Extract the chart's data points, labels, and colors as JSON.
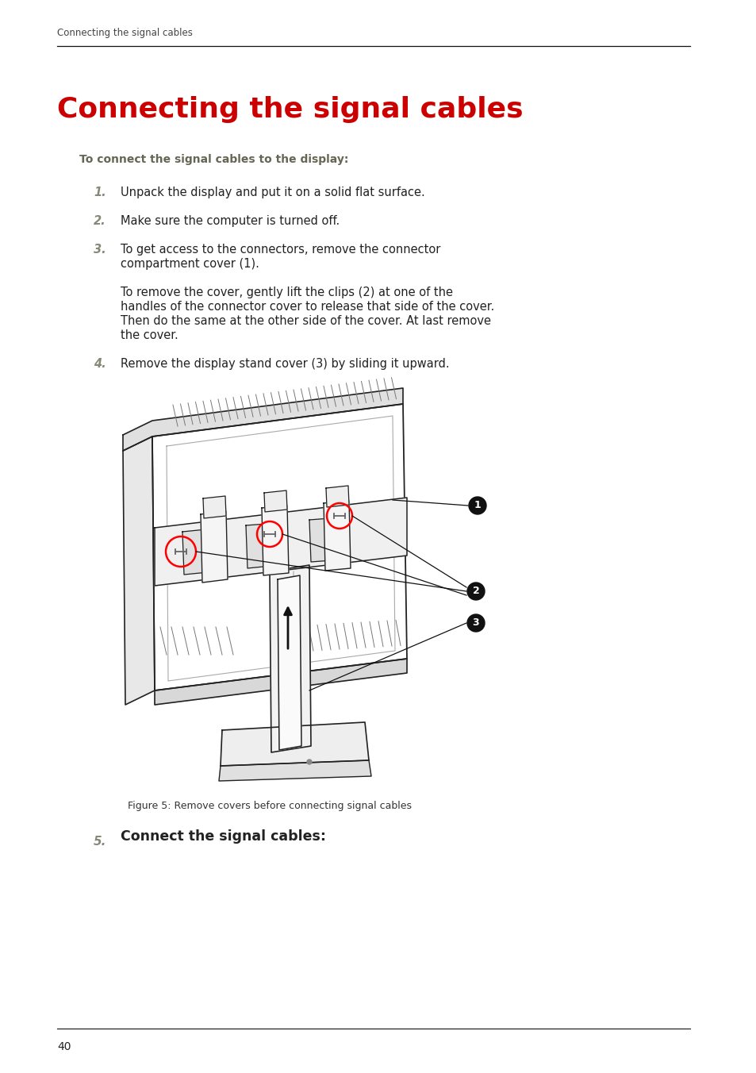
{
  "page_title_small": "Connecting the signal cables",
  "page_title_large": "Connecting the signal cables",
  "subtitle": "To connect the signal cables to the display:",
  "steps": [
    {
      "num": "1.",
      "text": "Unpack the display and put it on a solid flat surface."
    },
    {
      "num": "2.",
      "text": "Make sure the computer is turned off."
    },
    {
      "num": "3.",
      "lines": [
        "To get access to the connectors, remove the connector",
        "compartment cover (1)."
      ],
      "extra_lines": [
        "To remove the cover, gently lift the clips (2) at one of the",
        "handles of the connector cover to release that side of the cover.",
        "Then do the same at the other side of the cover. At last remove",
        "the cover."
      ]
    },
    {
      "num": "4.",
      "text": "Remove the display stand cover (3) by sliding it upward."
    }
  ],
  "figure_caption": "Figure 5: Remove covers before connecting signal cables",
  "step5_text": "Connect the signal cables:",
  "page_number": "40",
  "title_color": "#cc0000",
  "small_title_color": "#444444",
  "subtitle_color": "#666655",
  "text_color": "#222222",
  "step_num_color": "#888877",
  "page_bg": "#ffffff",
  "line_color": "#111111"
}
